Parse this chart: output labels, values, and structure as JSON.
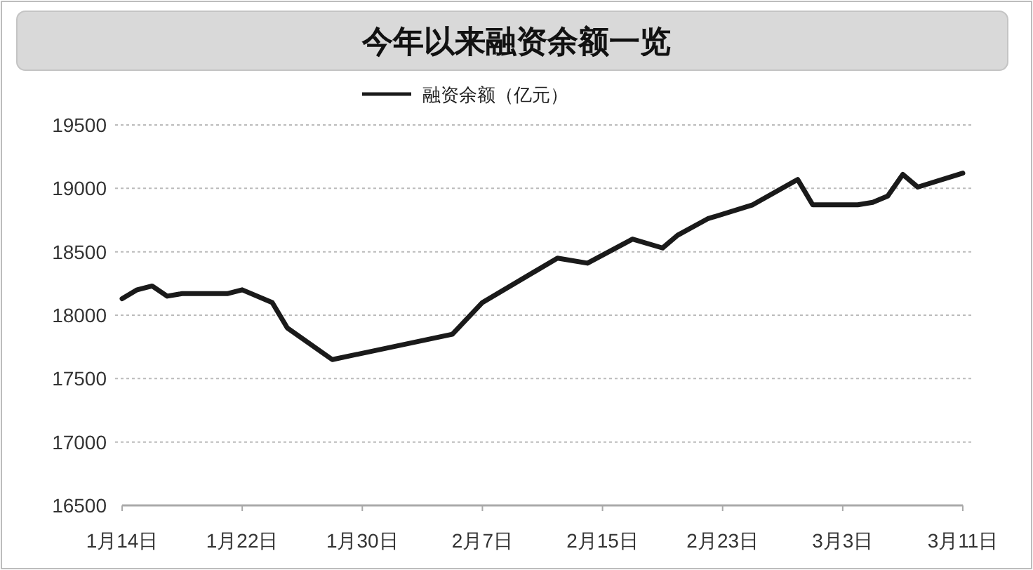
{
  "chart_data": {
    "type": "line",
    "title": "今年以来融资余额一览",
    "legend": "top",
    "grid": "y",
    "x": [
      "--01-14",
      "--01-15",
      "--01-16",
      "--01-17",
      "--01-18",
      "--01-21",
      "--01-22",
      "--01-24",
      "--01-25",
      "--01-28",
      "--02-05",
      "--02-07",
      "--02-12",
      "--02-14",
      "--02-17",
      "--02-19",
      "--02-20",
      "--02-22",
      "--02-25",
      "--02-28",
      "--03-01",
      "--03-04",
      "--03-05",
      "--03-06",
      "--03-07",
      "--03-08",
      "--03-11"
    ],
    "series": [
      {
        "name": "融资余额（亿元）",
        "color": "#1a1a1a",
        "values": [
          18130,
          18200,
          18230,
          18150,
          18170,
          18170,
          18200,
          18100,
          17900,
          17650,
          17850,
          18100,
          18450,
          18410,
          18600,
          18530,
          18630,
          18760,
          18870,
          19070,
          18870,
          18870,
          18890,
          18940,
          19110,
          19010,
          19120
        ]
      }
    ],
    "xlim": [
      "--01-14",
      "--03-11"
    ],
    "xticks": [
      {
        "value": "--01-14",
        "label": "1月14日"
      },
      {
        "value": "--01-22",
        "label": "1月22日"
      },
      {
        "value": "--01-30",
        "label": "1月30日"
      },
      {
        "value": "--02-07",
        "label": "2月7日"
      },
      {
        "value": "--02-15",
        "label": "2月15日"
      },
      {
        "value": "--02-23",
        "label": "2月23日"
      },
      {
        "value": "--03-03",
        "label": "3月3日"
      },
      {
        "value": "--03-11",
        "label": "3月11日"
      }
    ],
    "ylim": [
      16500,
      19500
    ],
    "yticks": [
      16500,
      17000,
      17500,
      18000,
      18500,
      19000,
      19500
    ]
  }
}
